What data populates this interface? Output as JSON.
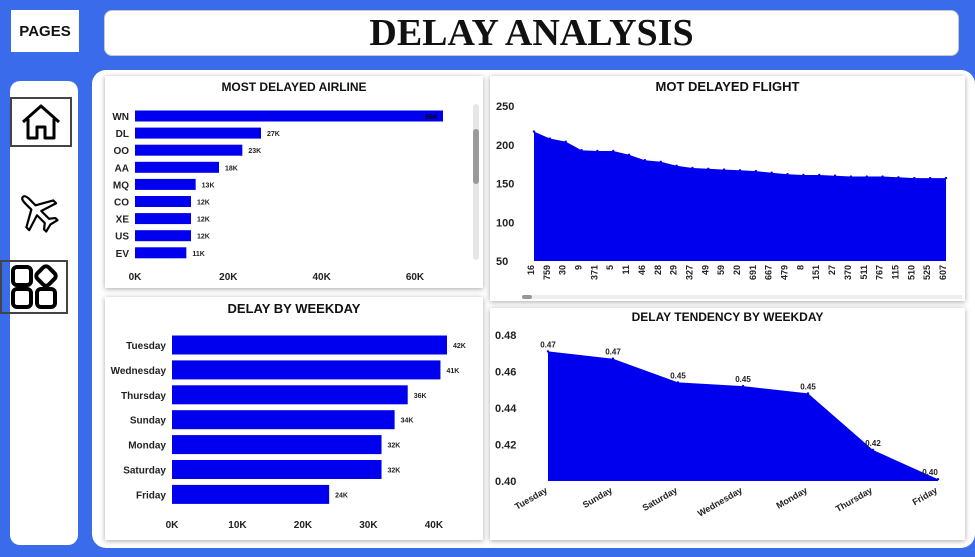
{
  "header": {
    "pages_label": "PAGES",
    "title": "DELAY ANALYSIS"
  },
  "nav": {
    "items": [
      {
        "icon": "home-icon"
      },
      {
        "icon": "airplane-icon"
      },
      {
        "icon": "dashboard-grid-icon"
      }
    ]
  },
  "colors": {
    "bar": "#0000ee",
    "background": "#3a6bea"
  },
  "chart_data": [
    {
      "type": "bar",
      "orientation": "horizontal",
      "title": "MOST DELAYED AIRLINE",
      "categories": [
        "WN",
        "DL",
        "OO",
        "AA",
        "MQ",
        "CO",
        "XE",
        "US",
        "EV"
      ],
      "values": [
        66,
        27,
        23,
        18,
        13,
        12,
        12,
        12,
        11
      ],
      "labels": [
        "66K",
        "27K",
        "23K",
        "18K",
        "13K",
        "12K",
        "12K",
        "12K",
        "11K"
      ],
      "xticks": [
        "0K",
        "20K",
        "40K",
        "60K"
      ],
      "xlim": [
        0,
        70
      ]
    },
    {
      "type": "area",
      "title": "MOT DELAYED FLIGHT",
      "categories": [
        "16",
        "759",
        "30",
        "9",
        "371",
        "5",
        "11",
        "46",
        "28",
        "29",
        "327",
        "49",
        "59",
        "20",
        "691",
        "667",
        "479",
        "8",
        "151",
        "27",
        "370",
        "511",
        "767",
        "115",
        "510",
        "525",
        "607"
      ],
      "values": [
        217,
        208,
        204,
        193,
        192,
        192,
        187,
        180,
        178,
        173,
        170,
        169,
        168,
        167,
        166,
        164,
        162,
        161,
        161,
        160,
        159,
        159,
        159,
        158,
        157,
        157,
        157
      ],
      "yticks": [
        "50",
        "100",
        "150",
        "200",
        "250"
      ],
      "ylim": [
        50,
        250
      ]
    },
    {
      "type": "bar",
      "orientation": "horizontal",
      "title": "DELAY BY WEEKDAY",
      "categories": [
        "Tuesday",
        "Wednesday",
        "Thursday",
        "Sunday",
        "Monday",
        "Saturday",
        "Friday"
      ],
      "values": [
        42,
        41,
        36,
        34,
        32,
        32,
        24
      ],
      "labels": [
        "42K",
        "41K",
        "36K",
        "34K",
        "32K",
        "32K",
        "24K"
      ],
      "xticks": [
        "0K",
        "10K",
        "20K",
        "30K",
        "40K"
      ],
      "xlim": [
        0,
        43
      ]
    },
    {
      "type": "area",
      "title": "DELAY TENDENCY BY WEEKDAY",
      "categories": [
        "Tuesday",
        "Sunday",
        "Saturday",
        "Wednesday",
        "Monday",
        "Thursday",
        "Friday"
      ],
      "values": [
        0.471,
        0.467,
        0.454,
        0.452,
        0.448,
        0.417,
        0.401
      ],
      "labels": [
        "0.47",
        "0.47",
        "0.45",
        "0.45",
        "0.45",
        "0.42",
        "0.40"
      ],
      "yticks": [
        "0.40",
        "0.42",
        "0.44",
        "0.46",
        "0.48"
      ],
      "ylim": [
        0.4,
        0.48
      ]
    }
  ]
}
